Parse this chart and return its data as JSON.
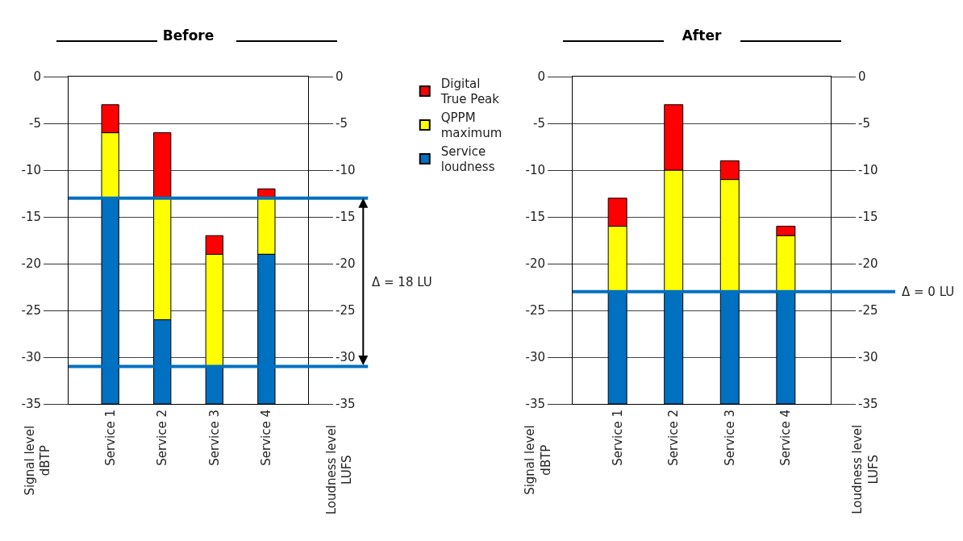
{
  "chart_data": [
    {
      "type": "bar",
      "title": "Before",
      "categories": [
        "Service 1",
        "Service 2",
        "Service 3",
        "Service 4"
      ],
      "series": [
        {
          "name": "Service loudness",
          "color": "#0070c0",
          "axis": "y2",
          "base": [
            -35,
            -35,
            -35,
            -35
          ],
          "values": [
            22,
            9,
            4,
            16
          ]
        },
        {
          "name": "QPPM maximum",
          "color": "#ffff00",
          "base": [
            -13,
            -26,
            -31,
            -19
          ],
          "values": [
            7,
            13,
            12,
            6
          ]
        },
        {
          "name": "Digital True Peak",
          "color": "#ff0000",
          "base": [
            -6,
            -13,
            -19,
            -13
          ],
          "values": [
            3,
            7,
            2,
            1
          ]
        }
      ],
      "ylim": [
        -35,
        0
      ],
      "yticks": [
        -35,
        -30,
        -25,
        -20,
        -15,
        -10,
        -5,
        0
      ],
      "y2lim": [
        -35,
        0
      ],
      "y2ticks": [
        -35,
        -30,
        -25,
        -20,
        -15,
        -10,
        -5,
        0
      ],
      "ylabel": "Signal level\ndBTP",
      "y2label": "Loudness level\nLUFS",
      "grid": "y",
      "legend": "right",
      "ref_lines": [
        {
          "axis": "y2",
          "value": -13,
          "color": "#0070c0"
        },
        {
          "axis": "y2",
          "value": -31,
          "color": "#0070c0"
        }
      ],
      "annotations": [
        "Δ = 18 LU"
      ]
    },
    {
      "type": "bar",
      "title": "After",
      "categories": [
        "Service 1",
        "Service 2",
        "Service 3",
        "Service 4"
      ],
      "series": [
        {
          "color": "#0070c0",
          "axis": "y2",
          "base": [
            -35,
            -35,
            -35,
            -35
          ],
          "values": [
            12,
            12,
            12,
            12
          ]
        },
        {
          "color": "#ffff00",
          "base": [
            -23,
            -23,
            -23,
            -23
          ],
          "values": [
            7,
            13,
            12,
            6
          ]
        },
        {
          "color": "#ff0000",
          "base": [
            -16,
            -10,
            -11,
            -17
          ],
          "values": [
            3,
            7,
            2,
            1
          ]
        }
      ],
      "ylim": [
        -35,
        0
      ],
      "yticks": [
        -35,
        -30,
        -25,
        -20,
        -15,
        -10,
        -5,
        0
      ],
      "y2lim": [
        -35,
        0
      ],
      "y2ticks": [
        -35,
        -30,
        -25,
        -20,
        -15,
        -10,
        -5,
        0
      ],
      "ylabel": "Signal level\ndBTP",
      "y2label": "Loudness level\nLUFS",
      "grid": "y",
      "ref_lines": [
        {
          "axis": "y2",
          "value": -23,
          "color": "#0070c0"
        }
      ],
      "annotations": [
        "Δ = 0 LU"
      ]
    }
  ]
}
